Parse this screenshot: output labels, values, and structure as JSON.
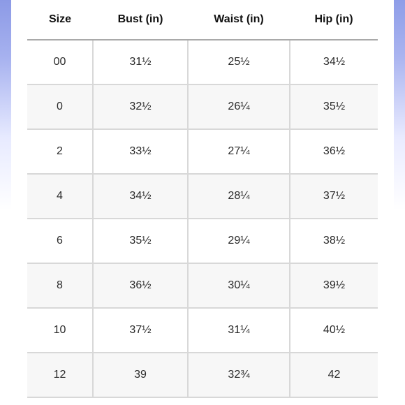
{
  "table": {
    "headers": [
      "Size",
      "Bust (in)",
      "Waist (in)",
      "Hip (in)"
    ],
    "rows": [
      [
        "00",
        "31½",
        "25½",
        "34½"
      ],
      [
        "0",
        "32½",
        "26¼",
        "35½"
      ],
      [
        "2",
        "33½",
        "27¼",
        "36½"
      ],
      [
        "4",
        "34½",
        "28¼",
        "37½"
      ],
      [
        "6",
        "35½",
        "29¼",
        "38½"
      ],
      [
        "8",
        "36½",
        "30¼",
        "39½"
      ],
      [
        "10",
        "37½",
        "31¼",
        "40½"
      ],
      [
        "12",
        "39",
        "32¾",
        "42"
      ]
    ]
  },
  "colors": {
    "edge_gradient": "#8c9ae6",
    "alt_row": "#f7f7f7",
    "grid": "#d8d8d8",
    "header_rule": "#a9a9a9"
  }
}
